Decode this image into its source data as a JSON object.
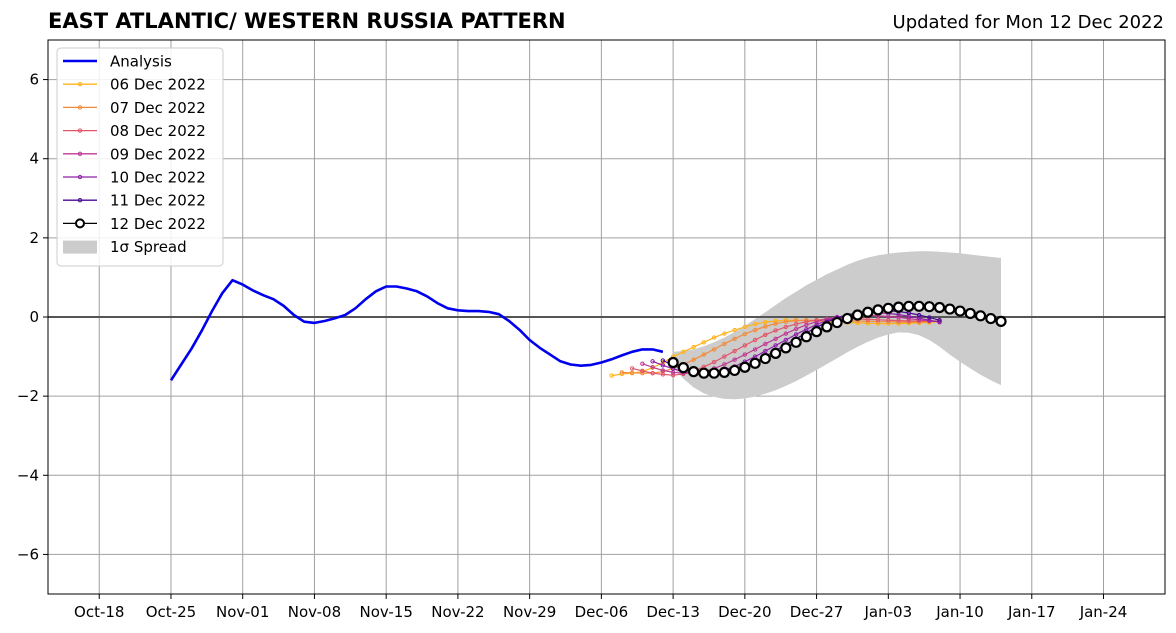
{
  "chart_data": {
    "type": "line",
    "title": "EAST ATLANTIC/ WESTERN RUSSIA PATTERN",
    "subtitle": "Updated for Mon 12 Dec 2022",
    "xlabel": "",
    "ylabel": "",
    "xlim": [
      "2022-10-13",
      "2023-01-30"
    ],
    "ylim": [
      -7,
      7
    ],
    "grid": true,
    "legend_position": "top-left",
    "x_ticks": [
      "2022-10-18",
      "2022-10-25",
      "2022-11-01",
      "2022-11-08",
      "2022-11-15",
      "2022-11-22",
      "2022-11-29",
      "2022-12-06",
      "2022-12-13",
      "2022-12-20",
      "2022-12-27",
      "2023-01-03",
      "2023-01-10",
      "2023-01-17",
      "2023-01-24"
    ],
    "x_tick_labels": [
      "Oct-18",
      "Oct-25",
      "Nov-01",
      "Nov-08",
      "Nov-15",
      "Nov-22",
      "Nov-29",
      "Dec-06",
      "Dec-13",
      "Dec-20",
      "Dec-27",
      "Jan-03",
      "Jan-10",
      "Jan-17",
      "Jan-24"
    ],
    "y_ticks": [
      -6,
      -4,
      -2,
      0,
      2,
      4,
      6
    ],
    "y_tick_labels": [
      "−6",
      "−4",
      "−2",
      "0",
      "2",
      "4",
      "6"
    ],
    "analysis": {
      "name": "Analysis",
      "color": "#0000ee",
      "start_date": "2022-10-25",
      "values": [
        -1.6,
        -1.2,
        -0.8,
        -0.35,
        0.15,
        0.6,
        0.93,
        0.82,
        0.67,
        0.55,
        0.45,
        0.28,
        0.05,
        -0.12,
        -0.15,
        -0.1,
        -0.03,
        0.05,
        0.22,
        0.45,
        0.65,
        0.77,
        0.77,
        0.72,
        0.65,
        0.52,
        0.35,
        0.22,
        0.17,
        0.15,
        0.15,
        0.13,
        0.07,
        -0.1,
        -0.32,
        -0.58,
        -0.78,
        -0.95,
        -1.12,
        -1.2,
        -1.23,
        -1.21,
        -1.15,
        -1.07,
        -0.97,
        -0.88,
        -0.82,
        -0.82,
        -0.88
      ]
    },
    "forecasts": [
      {
        "name": "06 Dec 2022",
        "color": "#ffb31a",
        "start_date": "2022-12-07",
        "values": [
          -1.48,
          -1.44,
          -1.42,
          -1.38,
          -1.28,
          -1.15,
          -1.0,
          -0.88,
          -0.76,
          -0.64,
          -0.52,
          -0.42,
          -0.33,
          -0.25,
          -0.18,
          -0.13,
          -0.1,
          -0.08,
          -0.08,
          -0.09,
          -0.1,
          -0.12,
          -0.13,
          -0.14,
          -0.15,
          -0.16,
          -0.17,
          -0.17,
          -0.17,
          -0.16,
          -0.15,
          -0.14,
          -0.12
        ]
      },
      {
        "name": "07 Dec 2022",
        "color": "#f28c3a",
        "start_date": "2022-12-08",
        "values": [
          -1.4,
          -1.41,
          -1.42,
          -1.42,
          -1.38,
          -1.3,
          -1.2,
          -1.08,
          -0.95,
          -0.82,
          -0.68,
          -0.55,
          -0.43,
          -0.33,
          -0.24,
          -0.17,
          -0.12,
          -0.09,
          -0.08,
          -0.08,
          -0.08,
          -0.09,
          -0.1,
          -0.1,
          -0.11,
          -0.12,
          -0.12,
          -0.13,
          -0.13,
          -0.13,
          -0.12,
          -0.11
        ]
      },
      {
        "name": "08 Dec 2022",
        "color": "#e0566a",
        "start_date": "2022-12-09",
        "values": [
          -1.3,
          -1.36,
          -1.42,
          -1.45,
          -1.47,
          -1.44,
          -1.37,
          -1.26,
          -1.14,
          -1.0,
          -0.86,
          -0.72,
          -0.58,
          -0.45,
          -0.34,
          -0.25,
          -0.18,
          -0.12,
          -0.08,
          -0.05,
          -0.04,
          -0.04,
          -0.05,
          -0.06,
          -0.07,
          -0.08,
          -0.09,
          -0.1,
          -0.1,
          -0.1,
          -0.1
        ]
      },
      {
        "name": "09 Dec 2022",
        "color": "#bf3a94",
        "start_date": "2022-12-10",
        "values": [
          -1.18,
          -1.27,
          -1.35,
          -1.4,
          -1.42,
          -1.42,
          -1.38,
          -1.3,
          -1.2,
          -1.08,
          -0.95,
          -0.82,
          -0.68,
          -0.55,
          -0.42,
          -0.3,
          -0.2,
          -0.12,
          -0.05,
          0.0,
          0.03,
          0.04,
          0.04,
          0.03,
          0.01,
          -0.01,
          -0.04,
          -0.07,
          -0.1,
          -0.12
        ]
      },
      {
        "name": "10 Dec 2022",
        "color": "#8e1fa8",
        "start_date": "2022-12-11",
        "values": [
          -1.12,
          -1.22,
          -1.31,
          -1.38,
          -1.42,
          -1.43,
          -1.4,
          -1.34,
          -1.25,
          -1.13,
          -1.0,
          -0.86,
          -0.72,
          -0.58,
          -0.44,
          -0.31,
          -0.19,
          -0.09,
          -0.01,
          0.05,
          0.09,
          0.11,
          0.11,
          0.09,
          0.06,
          0.02,
          -0.03,
          -0.08,
          -0.13
        ]
      },
      {
        "name": "11 Dec 2022",
        "color": "#4b0a94",
        "start_date": "2022-12-12",
        "values": [
          -1.1,
          -1.22,
          -1.32,
          -1.39,
          -1.43,
          -1.44,
          -1.41,
          -1.35,
          -1.26,
          -1.14,
          -1.0,
          -0.85,
          -0.7,
          -0.55,
          -0.4,
          -0.26,
          -0.13,
          -0.03,
          0.05,
          0.11,
          0.15,
          0.17,
          0.16,
          0.14,
          0.1,
          0.05,
          -0.01,
          -0.08
        ]
      },
      {
        "name": "12 Dec 2022",
        "color": "#000000",
        "start_date": "2022-12-13",
        "values": [
          -1.15,
          -1.28,
          -1.38,
          -1.42,
          -1.42,
          -1.4,
          -1.35,
          -1.27,
          -1.17,
          -1.05,
          -0.92,
          -0.78,
          -0.64,
          -0.5,
          -0.37,
          -0.25,
          -0.14,
          -0.04,
          0.05,
          0.12,
          0.18,
          0.22,
          0.25,
          0.27,
          0.27,
          0.26,
          0.24,
          0.2,
          0.15,
          0.09,
          0.03,
          -0.04,
          -0.11
        ]
      }
    ],
    "spread": {
      "name": "1σ Spread",
      "color": "#cccccc",
      "start_date": "2022-12-13",
      "upper": [
        -0.88,
        -0.86,
        -0.82,
        -0.74,
        -0.64,
        -0.52,
        -0.38,
        -0.22,
        -0.05,
        0.12,
        0.3,
        0.48,
        0.64,
        0.8,
        0.94,
        1.08,
        1.2,
        1.32,
        1.42,
        1.5,
        1.56,
        1.6,
        1.63,
        1.65,
        1.66,
        1.66,
        1.65,
        1.63,
        1.61,
        1.58,
        1.55,
        1.52,
        1.49
      ],
      "lower": [
        -1.28,
        -1.56,
        -1.78,
        -1.93,
        -2.02,
        -2.07,
        -2.08,
        -2.06,
        -2.01,
        -1.94,
        -1.85,
        -1.74,
        -1.62,
        -1.48,
        -1.34,
        -1.19,
        -1.04,
        -0.89,
        -0.75,
        -0.63,
        -0.52,
        -0.44,
        -0.39,
        -0.4,
        -0.46,
        -0.58,
        -0.75,
        -0.95,
        -1.13,
        -1.3,
        -1.46,
        -1.6,
        -1.72
      ]
    }
  }
}
